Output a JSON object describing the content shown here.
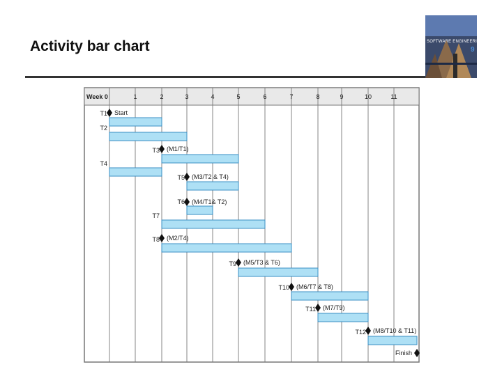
{
  "slide": {
    "title": "Activity bar chart"
  },
  "book": {
    "label": "SOFTWARE ENGINEERING",
    "edition": "9"
  },
  "colors": {
    "bar_fill": "#aee0f5",
    "bar_stroke": "#3a8fc4",
    "grid": "#777777",
    "header": "#e9e9e9",
    "milestone": "#111111"
  },
  "chart_data": {
    "type": "gantt",
    "x_header": "Week 0",
    "week_ticks": [
      "1",
      "2",
      "3",
      "4",
      "5",
      "6",
      "7",
      "8",
      "9",
      "10",
      "11"
    ],
    "start_label": "Start",
    "finish_label": "Finish",
    "rows": [
      {
        "kind": "milestone",
        "label": "Start",
        "week": 0
      },
      {
        "kind": "task",
        "label": "T1",
        "start": 0,
        "end": 2
      },
      {
        "kind": "task",
        "label": "T2",
        "start": 0,
        "end": 3
      },
      {
        "kind": "milestone",
        "label": "(M1/T1)",
        "week": 2
      },
      {
        "kind": "task",
        "label": "T3",
        "start": 2,
        "end": 5
      },
      {
        "kind": "task",
        "label": "T4",
        "start": 0,
        "end": 2
      },
      {
        "kind": "milestone",
        "label": "(M3/T2 & T4)",
        "week": 3
      },
      {
        "kind": "task",
        "label": "T5",
        "start": 3,
        "end": 5
      },
      {
        "kind": "milestone",
        "label": "(M4/T1& T2)",
        "week": 3
      },
      {
        "kind": "task",
        "label": "T6",
        "start": 3,
        "end": 4
      },
      {
        "kind": "task",
        "label": "T7",
        "start": 2,
        "end": 6
      },
      {
        "kind": "milestone",
        "label": "(M2/T4)",
        "week": 2
      },
      {
        "kind": "task",
        "label": "T8",
        "start": 2,
        "end": 7
      },
      {
        "kind": "milestone",
        "label": "(M5/T3 & T6)",
        "week": 5
      },
      {
        "kind": "task",
        "label": "T9",
        "start": 5,
        "end": 8
      },
      {
        "kind": "milestone",
        "label": "(M6/T7 & T8)",
        "week": 7
      },
      {
        "kind": "task",
        "label": "T10",
        "start": 7,
        "end": 10
      },
      {
        "kind": "milestone",
        "label": "(M7/T9)",
        "week": 8
      },
      {
        "kind": "task",
        "label": "T11",
        "start": 8,
        "end": 10
      },
      {
        "kind": "milestone",
        "label": "(M8/T10 & T11)",
        "week": 10
      },
      {
        "kind": "task",
        "label": "T12",
        "start": 10,
        "end": 12
      },
      {
        "kind": "milestone",
        "label": "Finish",
        "week": 12
      }
    ]
  }
}
